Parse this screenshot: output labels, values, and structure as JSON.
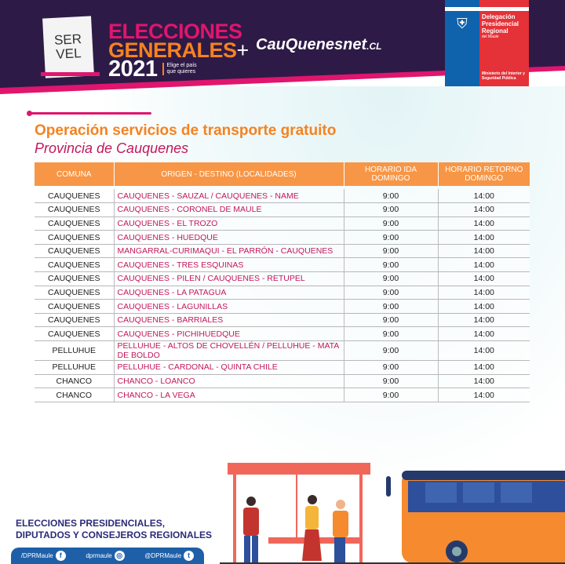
{
  "header": {
    "servel_logo": [
      "SER",
      "VEL"
    ],
    "elecciones_logo": {
      "line1": "ELECCIONES",
      "line2": "GENERALES",
      "plus": "+",
      "year": "2021",
      "tagline": "Elige el país que quieres"
    },
    "site_logo": {
      "main": "CauQuenesnet",
      "suffix": ".CL"
    },
    "gov_logo": {
      "line1": "Delegación Presidencial Regional",
      "line2": "del Maule",
      "line3": "Ministerio del Interior y Seguridad Pública"
    }
  },
  "title": "Operación servicios de transporte gratuito",
  "subtitle": "Provincia de Cauquenes",
  "table": {
    "headers": [
      "COMUNA",
      "ORIGEN - DESTINO (LOCALIDADES)",
      "HORARIO IDA DOMINGO",
      "HORARIO RETORNO DOMINGO"
    ],
    "rows": [
      [
        "CAUQUENES",
        "CAUQUENES - SAUZAL / CAUQUENES - NAME",
        "9:00",
        "14:00"
      ],
      [
        "CAUQUENES",
        "CAUQUENES - CORONEL DE MAULE",
        "9:00",
        "14:00"
      ],
      [
        "CAUQUENES",
        "CAUQUENES - EL TROZO",
        "9:00",
        "14:00"
      ],
      [
        "CAUQUENES",
        "CAUQUENES - HUEDQUE",
        "9:00",
        "14:00"
      ],
      [
        "CAUQUENES",
        "MANGARRAL-CURIMAQUI - EL PARRÓN - CAUQUENES",
        "9:00",
        "14:00"
      ],
      [
        "CAUQUENES",
        "CAUQUENES - TRES ESQUINAS",
        "9:00",
        "14:00"
      ],
      [
        "CAUQUENES",
        "CAUQUENES - PILEN / CAUQUENES - RETUPEL",
        "9:00",
        "14:00"
      ],
      [
        "CAUQUENES",
        "CAUQUENES - LA PATAGUA",
        "9:00",
        "14:00"
      ],
      [
        "CAUQUENES",
        "CAUQUENES - LAGUNILLAS",
        "9:00",
        "14:00"
      ],
      [
        "CAUQUENES",
        "CAUQUENES - BARRIALES",
        "9:00",
        "14:00"
      ],
      [
        "CAUQUENES",
        "CAUQUENES - PICHIHUEDQUE",
        "9:00",
        "14:00"
      ],
      [
        "PELLUHUE",
        "PELLUHUE - ALTOS DE CHOVELLÉN / PELLUHUE - MATA DE BOLDO",
        "9:00",
        "14:00"
      ],
      [
        "PELLUHUE",
        "PELLUHUE - CARDONAL - QUINTA CHILE",
        "9:00",
        "14:00"
      ],
      [
        "CHANCO",
        "CHANCO - LOANCO",
        "9:00",
        "14:00"
      ],
      [
        "CHANCO",
        "CHANCO - LA VEGA",
        "9:00",
        "14:00"
      ]
    ]
  },
  "footer": {
    "title_line1": "ELECCIONES PRESIDENCIALES,",
    "title_line2": "DIPUTADOS Y CONSEJEROS REGIONALES",
    "social": [
      {
        "label": "/DPRMaule",
        "icon": "facebook-icon",
        "glyph": "f"
      },
      {
        "label": "dprmaule",
        "icon": "instagram-icon",
        "glyph": "◎"
      },
      {
        "label": "@DPRMaule",
        "icon": "twitter-icon",
        "glyph": "t"
      }
    ]
  },
  "colors": {
    "header_bg": "#2e1a47",
    "pink": "#e0156e",
    "orange": "#f58220",
    "table_header": "#f79646",
    "route_text": "#c2185b",
    "social_bar": "#1e5fa8"
  }
}
